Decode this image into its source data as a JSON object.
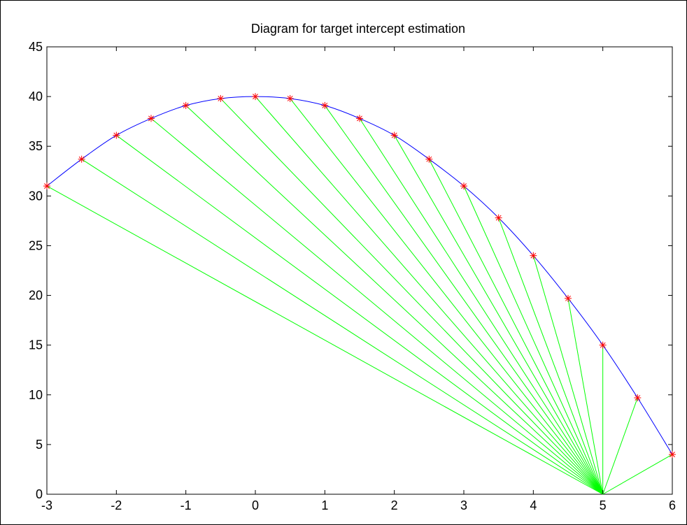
{
  "chart_data": {
    "type": "line",
    "title": "Diagram for target intercept estimation",
    "xlabel": "",
    "ylabel": "",
    "xlim": [
      -3,
      6
    ],
    "ylim": [
      0,
      45
    ],
    "x_ticks": [
      -3,
      -2,
      -1,
      0,
      1,
      2,
      3,
      4,
      5,
      6
    ],
    "y_ticks": [
      0,
      5,
      10,
      15,
      20,
      25,
      30,
      35,
      40,
      45
    ],
    "grid": false,
    "legend": "none",
    "origin_point": {
      "x": 5,
      "y": 0
    },
    "series": [
      {
        "type": "line",
        "color": "#0000ff",
        "marker": "none",
        "x": [
          -3,
          -2.5,
          -2,
          -1.5,
          -1,
          -0.5,
          0,
          0.5,
          1,
          1.5,
          2,
          2.5,
          3,
          3.5,
          4,
          4.5,
          5,
          5.5,
          6
        ],
        "y": [
          31.0,
          33.7,
          36.1,
          37.8,
          39.1,
          39.8,
          40.0,
          39.8,
          39.1,
          37.8,
          36.1,
          33.7,
          31.0,
          27.8,
          24.0,
          19.7,
          15.0,
          9.7,
          4.0
        ]
      },
      {
        "type": "scatter",
        "color": "#ff0000",
        "marker": "asterisk",
        "x": [
          -3,
          -2.5,
          -2,
          -1.5,
          -1,
          -0.5,
          0,
          0.5,
          1,
          1.5,
          2,
          2.5,
          3,
          3.5,
          4,
          4.5,
          5,
          5.5,
          6
        ],
        "y": [
          31.0,
          33.7,
          36.1,
          37.8,
          39.1,
          39.8,
          40.0,
          39.8,
          39.1,
          37.8,
          36.1,
          33.7,
          31.0,
          27.8,
          24.0,
          19.7,
          15.0,
          9.7,
          4.0
        ]
      },
      {
        "type": "segments-from-origin",
        "color": "#00ff00",
        "x": [
          -3,
          -2.5,
          -2,
          -1.5,
          -1,
          -0.5,
          0,
          0.5,
          1,
          1.5,
          2,
          2.5,
          3,
          3.5,
          4,
          4.5,
          5,
          5.5,
          6
        ],
        "y": [
          31.0,
          33.7,
          36.1,
          37.8,
          39.1,
          39.8,
          40.0,
          39.8,
          39.1,
          37.8,
          36.1,
          33.7,
          31.0,
          27.8,
          24.0,
          19.7,
          15.0,
          9.7,
          4.0
        ]
      }
    ]
  }
}
